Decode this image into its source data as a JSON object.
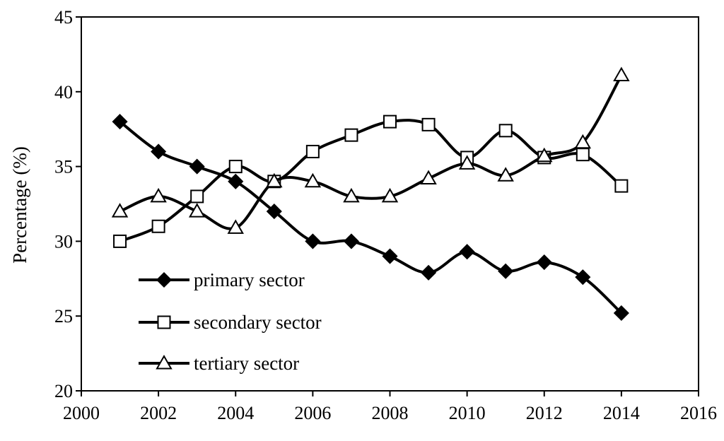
{
  "chart_data": {
    "type": "line",
    "title": "",
    "xlabel": "",
    "ylabel": "Percentage (%)",
    "xlim": [
      2000,
      2016
    ],
    "ylim": [
      20,
      45
    ],
    "xticks": [
      2000,
      2002,
      2004,
      2006,
      2008,
      2010,
      2012,
      2014,
      2016
    ],
    "yticks": [
      20,
      25,
      30,
      35,
      40,
      45
    ],
    "grid": false,
    "legend_position": "bottom-left",
    "x": [
      2001,
      2002,
      2003,
      2004,
      2005,
      2006,
      2007,
      2008,
      2009,
      2010,
      2011,
      2012,
      2013,
      2014
    ],
    "series": [
      {
        "name": "primary sector",
        "marker": "filled-diamond",
        "values": [
          38.0,
          36.0,
          35.0,
          34.0,
          32.0,
          30.0,
          30.0,
          29.0,
          27.9,
          29.3,
          28.0,
          28.6,
          27.6,
          25.2
        ]
      },
      {
        "name": "secondary sector",
        "marker": "open-square",
        "values": [
          30.0,
          31.0,
          33.0,
          35.0,
          34.0,
          36.0,
          37.1,
          38.0,
          37.8,
          35.6,
          37.4,
          35.6,
          35.8,
          33.7
        ]
      },
      {
        "name": "tertiary sector",
        "marker": "open-triangle",
        "values": [
          32.0,
          33.0,
          32.0,
          30.9,
          34.0,
          34.0,
          33.0,
          33.0,
          34.2,
          35.2,
          34.4,
          35.7,
          36.6,
          41.1
        ]
      }
    ]
  }
}
